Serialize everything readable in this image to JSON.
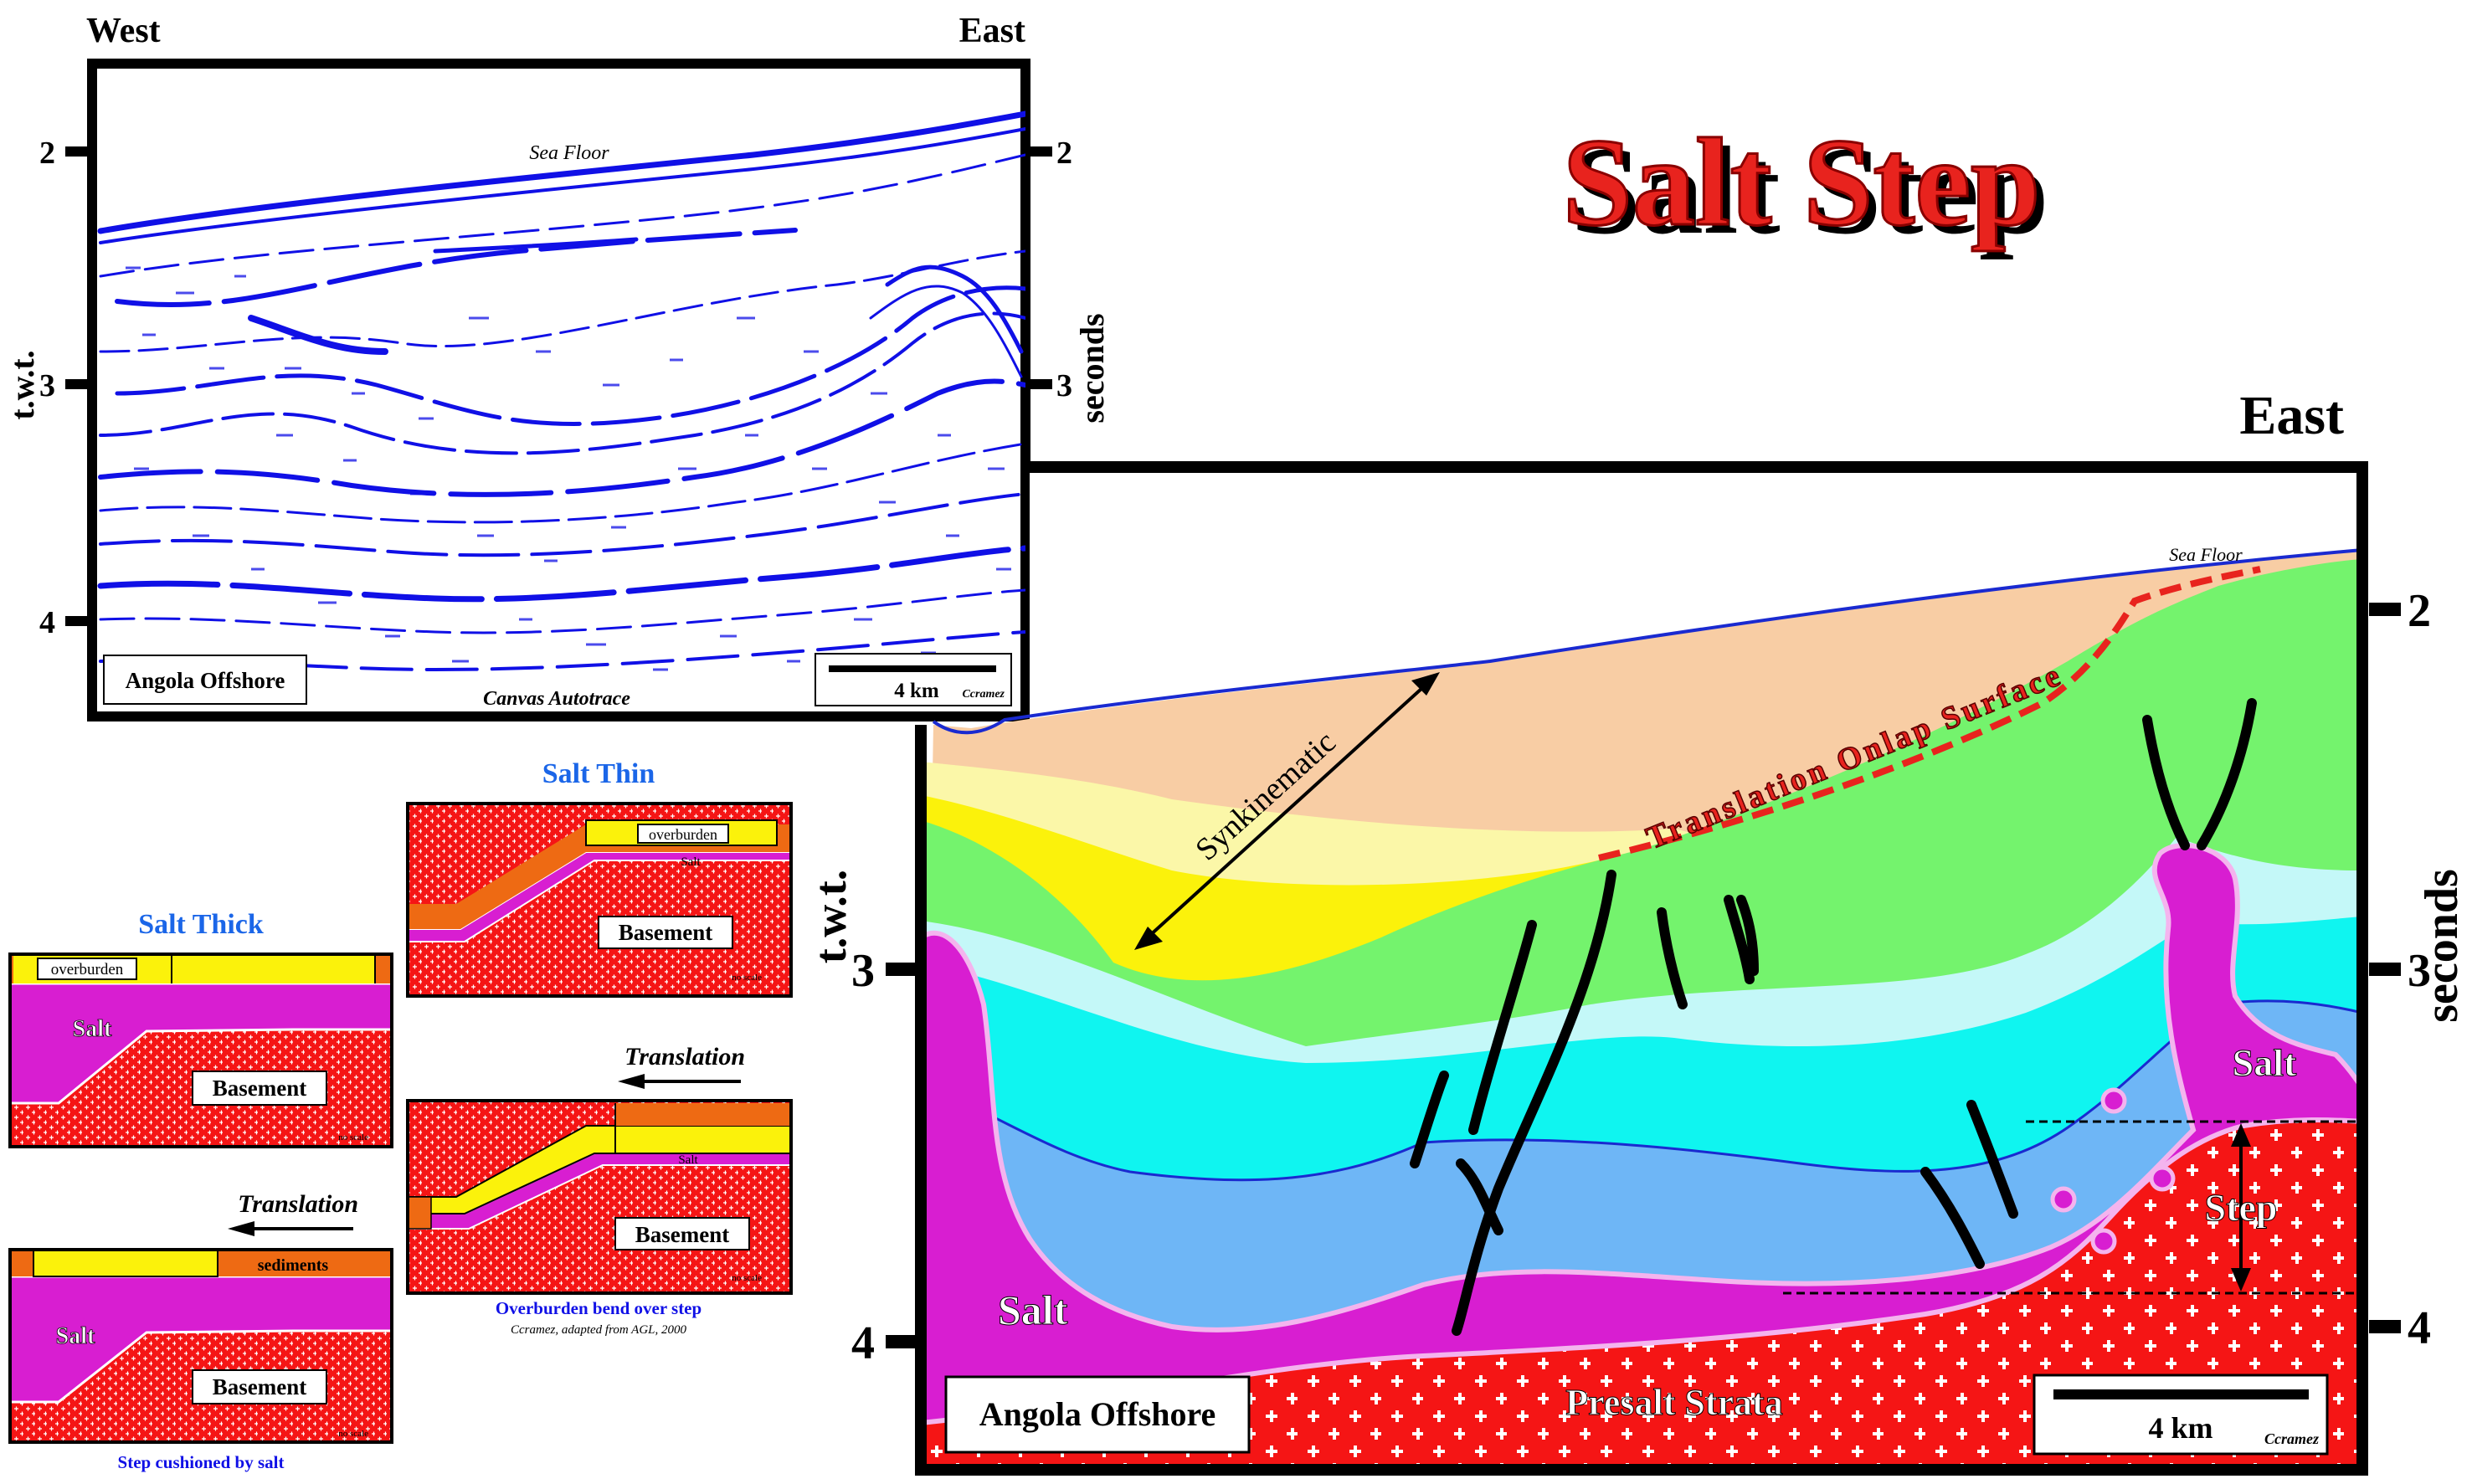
{
  "title": "Salt Step",
  "seismic": {
    "west": "West",
    "east": "East",
    "left_ticks": [
      "2",
      "3",
      "4"
    ],
    "right_ticks": [
      "2",
      "3",
      "4"
    ],
    "left_axis": "t.w.t.",
    "right_axis": "seconds",
    "sea_floor": "Sea Floor",
    "location": "Angola Offshore",
    "scale": "4 km",
    "credit": "Ccramez",
    "trace_note": "Canvas Autotrace"
  },
  "interpretation": {
    "east": "East",
    "left_ticks": [
      "3",
      "4"
    ],
    "right_ticks": [
      "2",
      "3",
      "4"
    ],
    "left_axis": "t.w.t.",
    "right_axis": "seconds",
    "sea_floor": "Sea Floor",
    "synkinematic": "Synkinematic",
    "onlap": "Translation Onlap Surface",
    "salt_left": "Salt",
    "salt_right": "Salt",
    "step": "Step",
    "presalt": "Presalt Strata",
    "location": "Angola Offshore",
    "scale": "4 km",
    "credit": "Ccramez"
  },
  "models": {
    "salt_thick": {
      "title": "Salt Thick",
      "overburden": "overburden",
      "salt": "Salt",
      "basement": "Basement",
      "noscale": "no scale"
    },
    "salt_thin": {
      "title": "Salt Thin",
      "overburden": "overburden",
      "salt": "Salt",
      "basement": "Basement",
      "noscale": "no scale"
    },
    "translation_a": {
      "arrow": "Translation",
      "sediments": "sediments",
      "salt": "Salt",
      "basement": "Basement",
      "noscale": "no scale",
      "caption": "Step cushioned by salt"
    },
    "translation_b": {
      "arrow": "Translation",
      "salt": "Salt",
      "basement": "Basement",
      "noscale": "no scale",
      "caption": "Overburden bend over step",
      "credit": "Ccramez, adapted from AGL, 2000"
    }
  },
  "colors": {
    "title": "#e8231e",
    "seismic_ink": "#1010e6",
    "salt": "#d81ed1",
    "basement": "#f51515",
    "peach": "#f8cda4",
    "yellow": "#fbf20b",
    "pale_yellow": "#fbf7a8",
    "green": "#74f36d",
    "cyan": "#0ff5f0",
    "light_cyan": "#c4f8f8",
    "blue": "#6eb6f6",
    "orange": "#ee6a13",
    "model_title": "#1b66e8"
  }
}
